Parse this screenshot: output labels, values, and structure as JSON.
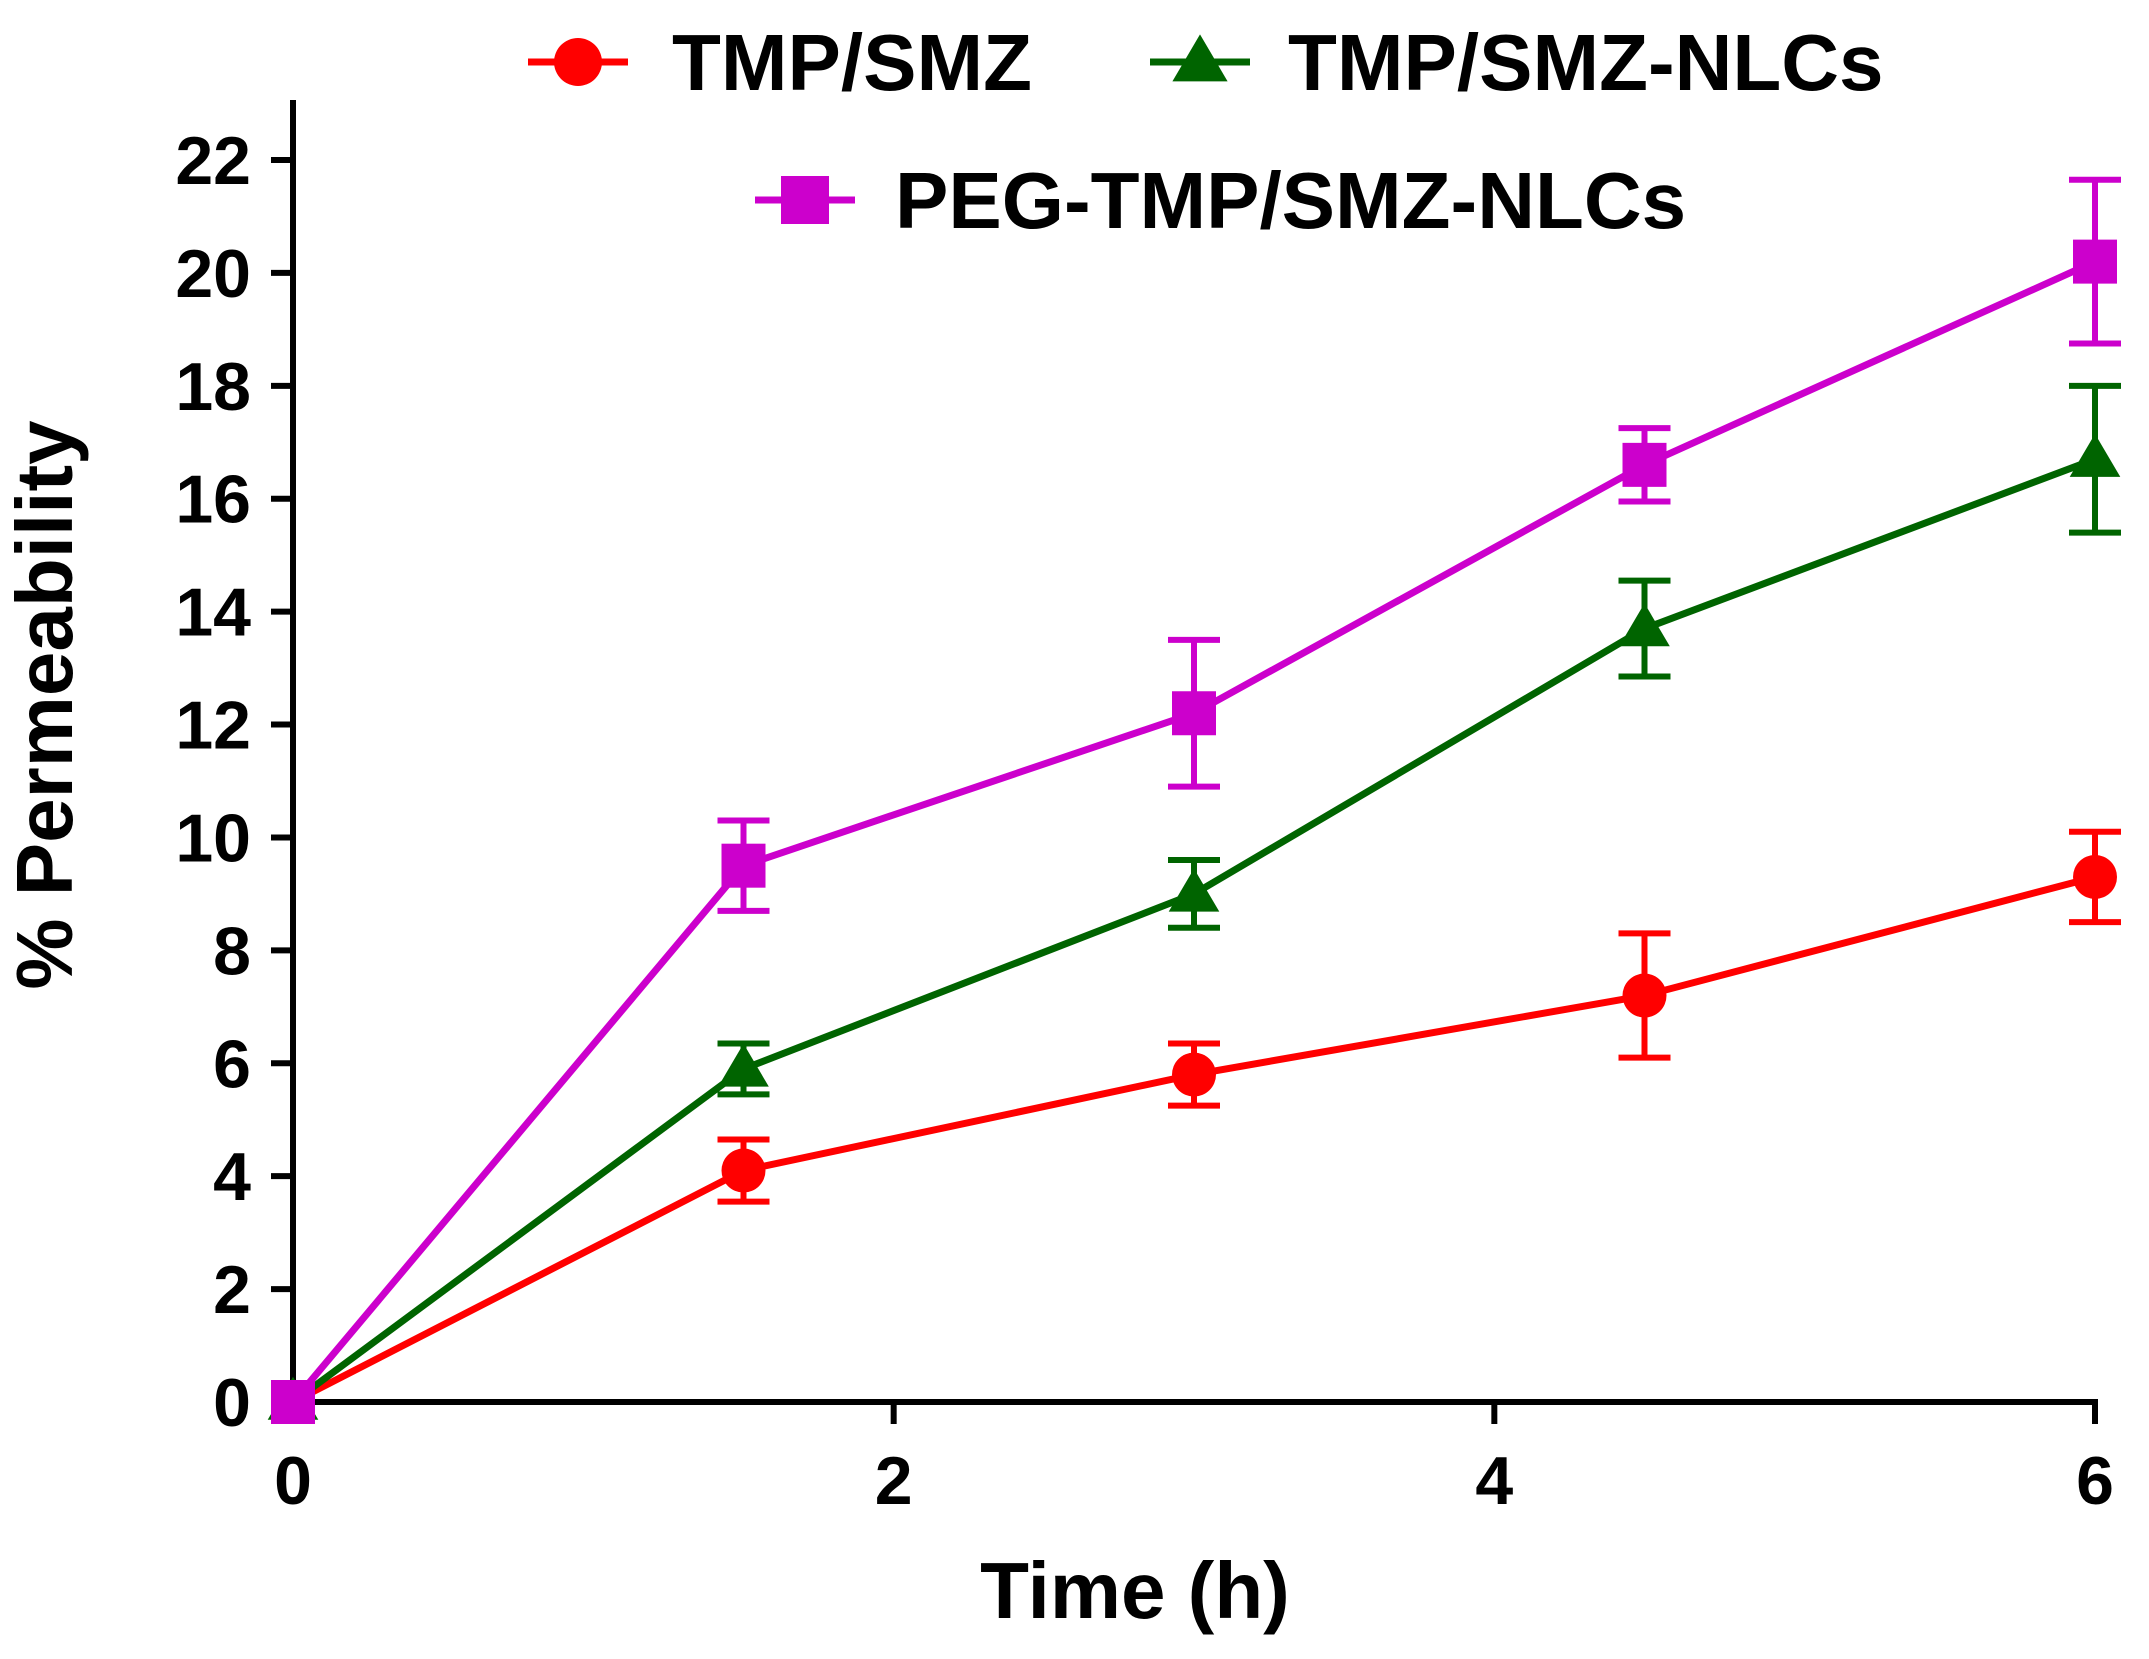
{
  "chart_data": {
    "type": "line",
    "title": "",
    "xlabel": "Time (h)",
    "ylabel": "% Permeability",
    "xlim": [
      0,
      6
    ],
    "ylim": [
      0,
      22
    ],
    "x_ticks": [
      0,
      2,
      4,
      6
    ],
    "y_ticks": [
      0,
      2,
      4,
      6,
      8,
      10,
      12,
      14,
      16,
      18,
      20,
      22
    ],
    "x_tick_labels": [
      "0",
      "2",
      "4",
      "6"
    ],
    "y_tick_labels": [
      "0",
      "2",
      "4",
      "6",
      "8",
      "10",
      "12",
      "14",
      "16",
      "18",
      "20",
      "22"
    ],
    "grid": false,
    "legend_position": "top",
    "x": [
      0,
      1.5,
      3,
      4.5,
      6
    ],
    "series": [
      {
        "name": "TMP/SMZ",
        "marker": "circle",
        "color": "#ff0000",
        "values": [
          0,
          4.1,
          5.8,
          7.2,
          9.3
        ],
        "errors": [
          0,
          0.55,
          0.55,
          1.1,
          0.8
        ]
      },
      {
        "name": "TMP/SMZ-NLCs",
        "marker": "triangle",
        "color": "#006400",
        "values": [
          0,
          5.9,
          9.0,
          13.7,
          16.7
        ],
        "errors": [
          0,
          0.45,
          0.6,
          0.85,
          1.3
        ]
      },
      {
        "name": "PEG-TMP/SMZ-NLCs",
        "marker": "square",
        "color": "#cc00cc",
        "values": [
          0,
          9.5,
          12.2,
          16.6,
          20.2
        ],
        "errors": [
          0,
          0.8,
          1.3,
          0.65,
          1.45
        ]
      }
    ]
  }
}
